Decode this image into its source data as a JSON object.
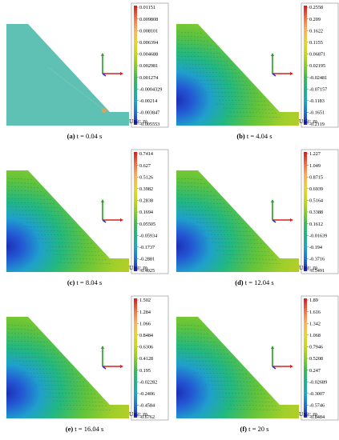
{
  "unit_label": "Unit: m",
  "panels": [
    {
      "id": "a",
      "letter": "(a)",
      "caption": " t = 0.04 s",
      "scale_values": [
        "0.01151",
        "0.009808",
        "0.008101",
        "0.006394",
        "0.004688",
        "0.002981",
        "0.001274",
        "-0.0004329",
        "-0.00214",
        "-0.003847",
        "-0.005553"
      ],
      "field": "uniform"
    },
    {
      "id": "b",
      "letter": "(b)",
      "caption": " t = 4.04 s",
      "scale_values": [
        "0.2558",
        "0.209",
        "0.1622",
        "0.1155",
        "0.06871",
        "0.02195",
        "-0.02481",
        "-0.07157",
        "-0.1183",
        "-0.1651",
        "-0.2119"
      ],
      "field": "gradient"
    },
    {
      "id": "c",
      "letter": "(c)",
      "caption": " t = 8.04 s",
      "scale_values": [
        "0.7414",
        "0.627",
        "0.5126",
        "0.3982",
        "0.2838",
        "0.1694",
        "0.05505",
        "-0.05934",
        "-0.1737",
        "-0.2881",
        "-0.4025"
      ],
      "field": "gradient"
    },
    {
      "id": "d",
      "letter": "(d)",
      "caption": " t = 12.04 s",
      "scale_values": [
        "1.227",
        "1.049",
        "0.8715",
        "0.6939",
        "0.5164",
        "0.3388",
        "0.1612",
        "-0.01639",
        "-0.194",
        "-0.3716",
        "-0.5491"
      ],
      "field": "gradient"
    },
    {
      "id": "e",
      "letter": "(e)",
      "caption": " t = 16.04 s",
      "scale_values": [
        "1.502",
        "1.284",
        "1.066",
        "0.8484",
        "0.6306",
        "0.4128",
        "0.195",
        "-0.02282",
        "-0.2406",
        "-0.4584",
        "-0.6762"
      ],
      "field": "gradient"
    },
    {
      "id": "f",
      "letter": "(f)",
      "caption": " t = 20 s",
      "scale_values": [
        "1.89",
        "1.616",
        "1.342",
        "1.068",
        "0.7946",
        "0.5208",
        "0.247",
        "-0.02689",
        "-0.3007",
        "-0.5746",
        "-0.8484"
      ],
      "field": "gradient"
    }
  ],
  "colors": {
    "legend_stops": [
      "#d7191c",
      "#f46d43",
      "#fdae61",
      "#e6d33c",
      "#c8d820",
      "#8ccc2a",
      "#3fba52",
      "#1fb38a",
      "#22a5c4",
      "#1f6fd6",
      "#2b1fb8"
    ],
    "uniform_fill": "#5fc1b4",
    "axis_x": "#d42020",
    "axis_y": "#20a020",
    "axis_z": "#2030c0"
  }
}
